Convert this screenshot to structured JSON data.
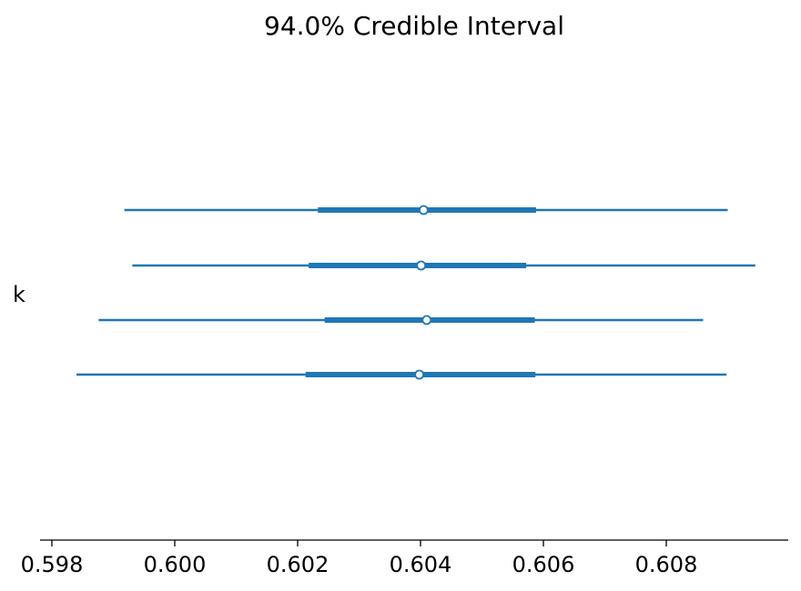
{
  "chart_data": {
    "type": "forest",
    "title": "94.0% Credible Interval",
    "variable_label": "k",
    "xlim": [
      0.5978,
      0.61
    ],
    "x_ticks": [
      0.598,
      0.6,
      0.602,
      0.604,
      0.606,
      0.608
    ],
    "x_tick_labels": [
      "0.598",
      "0.600",
      "0.602",
      "0.604",
      "0.606",
      "0.608"
    ],
    "color": "#1f77b4",
    "chains": [
      {
        "chain": 0,
        "median": 0.60405,
        "hdi_94": [
          0.59918,
          0.609
        ],
        "iqr": [
          0.60233,
          0.60588
        ]
      },
      {
        "chain": 1,
        "median": 0.60401,
        "hdi_94": [
          0.59931,
          0.60945
        ],
        "iqr": [
          0.60218,
          0.60572
        ]
      },
      {
        "chain": 2,
        "median": 0.6041,
        "hdi_94": [
          0.59876,
          0.6086
        ],
        "iqr": [
          0.60244,
          0.60586
        ]
      },
      {
        "chain": 3,
        "median": 0.60398,
        "hdi_94": [
          0.5984,
          0.60898
        ],
        "iqr": [
          0.60213,
          0.60587
        ]
      }
    ]
  }
}
